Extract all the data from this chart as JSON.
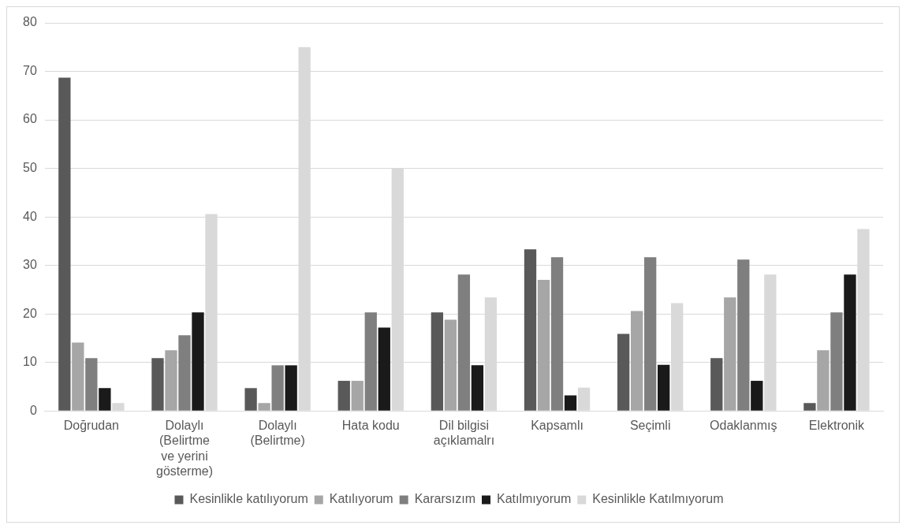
{
  "chart_data": {
    "type": "bar",
    "categories": [
      "Doğrudan",
      "Dolaylı (Belirtme ve yerini gösterme)",
      "Dolaylı (Belirtme)",
      "Hata kodu",
      "Dil bilgisi açıklamalrı",
      "Kapsamlı",
      "Seçimli",
      "Odaklanmış",
      "Elektronik"
    ],
    "series": [
      {
        "name": "Kesinlikle katılıyorum",
        "color": "#595959",
        "values": [
          68.7,
          10.9,
          4.7,
          6.2,
          20.3,
          33.3,
          15.9,
          10.9,
          1.6
        ]
      },
      {
        "name": "Katılıyorum",
        "color": "#a6a6a6",
        "values": [
          14.1,
          12.5,
          1.6,
          6.2,
          18.8,
          27.0,
          20.6,
          23.4,
          12.5
        ]
      },
      {
        "name": "Kararsızım",
        "color": "#7f7f7f",
        "values": [
          10.9,
          15.6,
          9.4,
          20.3,
          28.1,
          31.7,
          31.7,
          31.2,
          20.3
        ]
      },
      {
        "name": "Katılmıyorum",
        "color": "#1a1a1a",
        "values": [
          4.7,
          20.3,
          9.4,
          17.2,
          9.4,
          3.2,
          9.5,
          6.2,
          28.1
        ]
      },
      {
        "name": "Kesinlikle Katılmıyorum",
        "color": "#d9d9d9",
        "values": [
          1.6,
          40.6,
          75.0,
          50.0,
          23.4,
          4.8,
          22.2,
          28.1,
          37.5
        ]
      }
    ],
    "ylim": [
      0,
      80
    ],
    "yticks": [
      0,
      10,
      20,
      30,
      40,
      50,
      60,
      70,
      80
    ],
    "grid": "y",
    "legend": "bottom"
  }
}
